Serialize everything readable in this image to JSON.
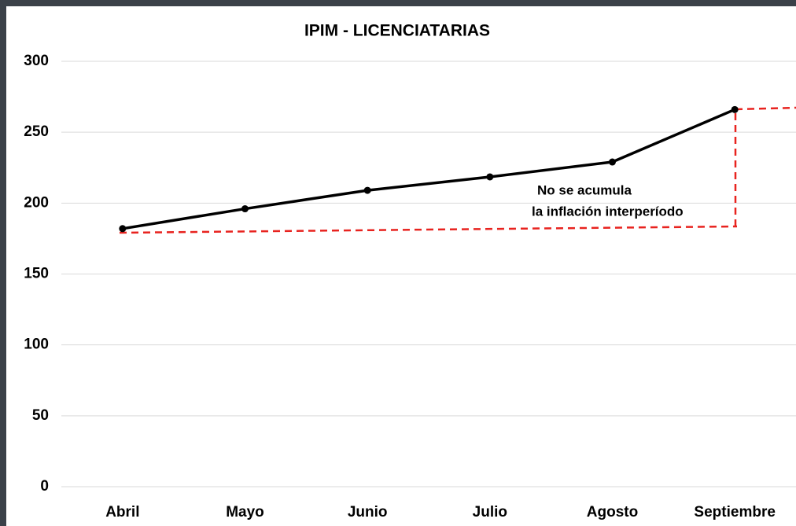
{
  "chart_data": {
    "type": "line",
    "title": "IPIM - LICENCIATARIAS",
    "categories": [
      "Abril",
      "Mayo",
      "Junio",
      "Julio",
      "Agosto",
      "Septiembre"
    ],
    "series": [
      {
        "name": "IPIM",
        "color": "#000000",
        "values": [
          182,
          196,
          209,
          218.5,
          229,
          266
        ]
      }
    ],
    "ylim": [
      0,
      300
    ],
    "yticks": [
      0,
      50,
      100,
      150,
      200,
      250,
      300
    ],
    "grid": true,
    "annotations": [
      "No se acumula",
      "la inflación  interperíodo"
    ]
  }
}
